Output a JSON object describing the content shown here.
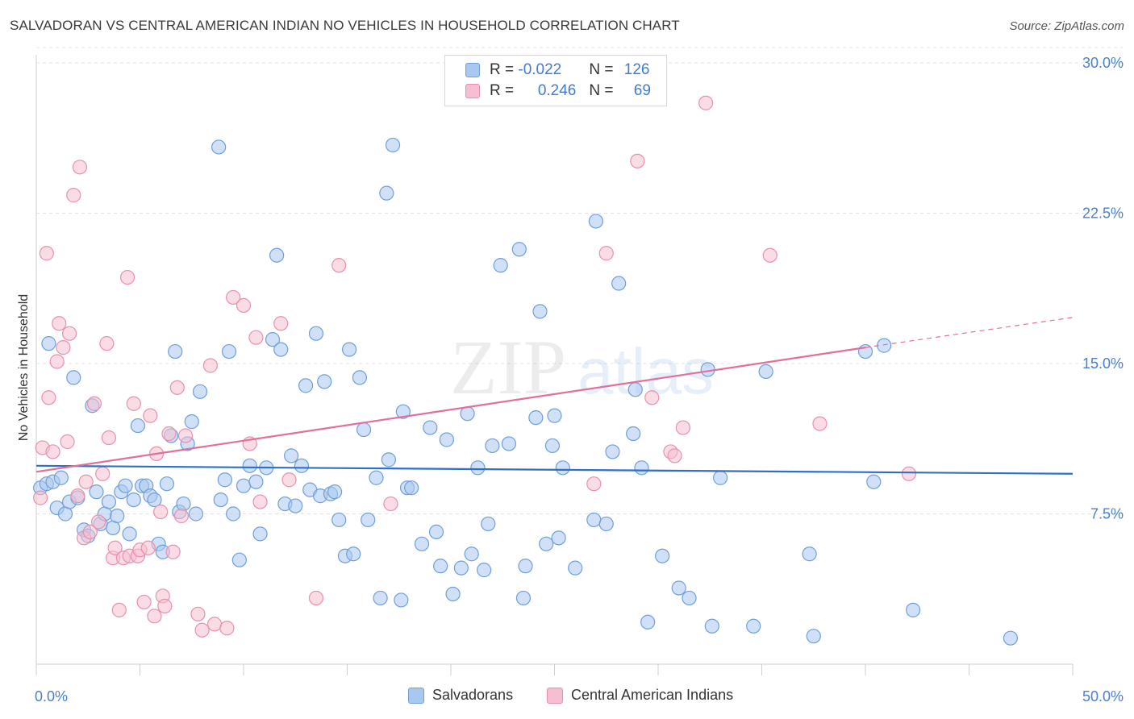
{
  "header": {
    "title": "SALVADORAN VS CENTRAL AMERICAN INDIAN NO VEHICLES IN HOUSEHOLD CORRELATION CHART",
    "source": "Source: ZipAtlas.com"
  },
  "legend": {
    "rows": [
      {
        "r_label": "R = ",
        "r_value": "-0.022",
        "n_label": "N = ",
        "n_value": "126"
      },
      {
        "r_label": "R = ",
        "r_value": "0.246",
        "n_label": "N = ",
        "n_value": "69"
      }
    ]
  },
  "bottom_legend": [
    "Salvadorans",
    "Central American Indians"
  ],
  "watermark": {
    "zip": "ZIP",
    "atlas": "atlas"
  },
  "colors": {
    "blue_fill": "#a9c8f0",
    "blue_stroke": "#6f9fdb",
    "blue_line": "#2f6fc8",
    "pink_fill": "#f5bfd0",
    "pink_stroke": "#e890ad",
    "pink_line": "#e0709a",
    "tick_text": "#4a7fcf",
    "grid": "#e3e3e3"
  },
  "chart_data": {
    "type": "scatter",
    "title": "SALVADORAN VS CENTRAL AMERICAN INDIAN NO VEHICLES IN HOUSEHOLD CORRELATION CHART",
    "xlabel": "",
    "ylabel": "No Vehicles in Household",
    "xlim": [
      0,
      50
    ],
    "ylim": [
      0,
      30
    ],
    "x_tick_labels": [
      "0.0%",
      "50.0%"
    ],
    "y_ticks": [
      7.5,
      15.0,
      22.5,
      30.0
    ],
    "y_tick_labels": [
      "7.5%",
      "15.0%",
      "22.5%",
      "30.0%"
    ],
    "grid": true,
    "legend_position": "top-center",
    "series": [
      {
        "name": "Salvadorans",
        "color": "#a9c8f0",
        "trend": {
          "x": [
            0,
            50
          ],
          "y": [
            9.9,
            9.5
          ]
        },
        "points": [
          [
            0.2,
            8.8
          ],
          [
            0.5,
            9.0
          ],
          [
            0.6,
            16.0
          ],
          [
            0.8,
            9.1
          ],
          [
            1.0,
            7.8
          ],
          [
            1.2,
            9.3
          ],
          [
            1.4,
            7.5
          ],
          [
            1.6,
            8.1
          ],
          [
            1.8,
            14.3
          ],
          [
            2.0,
            8.3
          ],
          [
            2.3,
            6.7
          ],
          [
            2.5,
            6.4
          ],
          [
            2.7,
            12.9
          ],
          [
            2.9,
            8.6
          ],
          [
            3.1,
            7.0
          ],
          [
            3.3,
            7.5
          ],
          [
            3.5,
            8.1
          ],
          [
            3.7,
            6.8
          ],
          [
            3.9,
            7.4
          ],
          [
            4.1,
            8.6
          ],
          [
            4.3,
            8.9
          ],
          [
            4.5,
            6.5
          ],
          [
            4.7,
            8.2
          ],
          [
            4.9,
            11.9
          ],
          [
            5.1,
            8.9
          ],
          [
            5.3,
            8.9
          ],
          [
            5.5,
            8.4
          ],
          [
            5.7,
            8.2
          ],
          [
            5.9,
            6.0
          ],
          [
            6.1,
            5.6
          ],
          [
            6.3,
            9.0
          ],
          [
            6.5,
            11.4
          ],
          [
            6.7,
            15.6
          ],
          [
            6.9,
            7.6
          ],
          [
            7.1,
            8.0
          ],
          [
            7.3,
            11.0
          ],
          [
            7.5,
            12.1
          ],
          [
            7.7,
            7.5
          ],
          [
            7.9,
            13.6
          ],
          [
            8.8,
            25.8
          ],
          [
            8.9,
            8.2
          ],
          [
            9.1,
            9.2
          ],
          [
            9.3,
            15.6
          ],
          [
            9.5,
            7.5
          ],
          [
            9.8,
            5.2
          ],
          [
            10.0,
            8.9
          ],
          [
            10.3,
            9.9
          ],
          [
            10.6,
            9.1
          ],
          [
            10.8,
            6.5
          ],
          [
            11.1,
            9.8
          ],
          [
            11.4,
            16.2
          ],
          [
            11.6,
            20.4
          ],
          [
            11.8,
            15.7
          ],
          [
            12.0,
            8.0
          ],
          [
            12.3,
            10.4
          ],
          [
            12.5,
            7.9
          ],
          [
            12.8,
            9.9
          ],
          [
            13.0,
            13.9
          ],
          [
            13.2,
            8.7
          ],
          [
            13.5,
            16.5
          ],
          [
            13.7,
            8.4
          ],
          [
            13.9,
            14.1
          ],
          [
            14.2,
            8.5
          ],
          [
            14.4,
            8.6
          ],
          [
            14.6,
            7.2
          ],
          [
            14.9,
            5.4
          ],
          [
            15.1,
            15.7
          ],
          [
            15.3,
            5.5
          ],
          [
            15.6,
            14.3
          ],
          [
            15.8,
            11.7
          ],
          [
            16.0,
            7.2
          ],
          [
            16.4,
            9.3
          ],
          [
            16.6,
            3.3
          ],
          [
            16.9,
            23.5
          ],
          [
            17.0,
            10.2
          ],
          [
            17.2,
            25.9
          ],
          [
            17.6,
            3.2
          ],
          [
            17.7,
            12.6
          ],
          [
            17.9,
            8.8
          ],
          [
            18.1,
            8.8
          ],
          [
            18.6,
            6.0
          ],
          [
            19.0,
            11.8
          ],
          [
            19.3,
            6.6
          ],
          [
            19.5,
            4.9
          ],
          [
            19.8,
            11.2
          ],
          [
            20.1,
            3.5
          ],
          [
            20.5,
            4.8
          ],
          [
            20.8,
            12.5
          ],
          [
            21.0,
            5.5
          ],
          [
            21.3,
            9.8
          ],
          [
            21.6,
            4.7
          ],
          [
            21.8,
            7.0
          ],
          [
            22.0,
            10.9
          ],
          [
            22.4,
            19.9
          ],
          [
            22.8,
            11.0
          ],
          [
            23.3,
            20.7
          ],
          [
            23.5,
            3.3
          ],
          [
            23.6,
            4.9
          ],
          [
            24.1,
            12.3
          ],
          [
            24.3,
            17.6
          ],
          [
            24.6,
            6.0
          ],
          [
            24.9,
            10.9
          ],
          [
            25.0,
            12.4
          ],
          [
            25.2,
            6.3
          ],
          [
            25.4,
            9.8
          ],
          [
            26.0,
            4.8
          ],
          [
            26.9,
            7.2
          ],
          [
            27.0,
            22.1
          ],
          [
            27.5,
            7.0
          ],
          [
            27.8,
            10.6
          ],
          [
            28.1,
            19.0
          ],
          [
            28.8,
            11.5
          ],
          [
            28.9,
            13.7
          ],
          [
            29.2,
            9.8
          ],
          [
            29.5,
            2.1
          ],
          [
            30.2,
            5.4
          ],
          [
            31.0,
            3.8
          ],
          [
            31.5,
            3.3
          ],
          [
            32.4,
            14.7
          ],
          [
            32.6,
            1.9
          ],
          [
            33.0,
            9.3
          ],
          [
            34.6,
            1.9
          ],
          [
            35.2,
            14.6
          ],
          [
            37.3,
            5.5
          ],
          [
            37.5,
            1.4
          ],
          [
            40.0,
            15.6
          ],
          [
            40.4,
            9.1
          ],
          [
            40.9,
            15.9
          ],
          [
            42.3,
            2.7
          ],
          [
            47.0,
            1.3
          ]
        ]
      },
      {
        "name": "Central American Indians",
        "color": "#f5bfd0",
        "trend": {
          "x": [
            0,
            40
          ],
          "y": [
            9.6,
            15.8
          ]
        },
        "trend_dashed": {
          "x": [
            40,
            50
          ],
          "y": [
            15.8,
            17.3
          ]
        },
        "points": [
          [
            0.2,
            8.3
          ],
          [
            0.3,
            10.8
          ],
          [
            0.5,
            20.5
          ],
          [
            0.6,
            13.3
          ],
          [
            0.8,
            10.6
          ],
          [
            1.0,
            15.1
          ],
          [
            1.1,
            17.0
          ],
          [
            1.3,
            15.8
          ],
          [
            1.5,
            11.1
          ],
          [
            1.6,
            16.5
          ],
          [
            1.8,
            23.4
          ],
          [
            2.0,
            8.4
          ],
          [
            2.1,
            24.8
          ],
          [
            2.3,
            6.3
          ],
          [
            2.4,
            9.1
          ],
          [
            2.6,
            6.6
          ],
          [
            2.8,
            13.0
          ],
          [
            3.0,
            7.1
          ],
          [
            3.2,
            9.5
          ],
          [
            3.4,
            16.0
          ],
          [
            3.5,
            11.3
          ],
          [
            3.7,
            5.3
          ],
          [
            3.8,
            5.8
          ],
          [
            4.0,
            2.7
          ],
          [
            4.2,
            5.3
          ],
          [
            4.4,
            19.3
          ],
          [
            4.5,
            5.4
          ],
          [
            4.7,
            13.0
          ],
          [
            4.9,
            5.4
          ],
          [
            5.0,
            5.7
          ],
          [
            5.2,
            3.1
          ],
          [
            5.4,
            5.8
          ],
          [
            5.5,
            12.4
          ],
          [
            5.7,
            2.4
          ],
          [
            5.8,
            10.5
          ],
          [
            6.0,
            7.6
          ],
          [
            6.1,
            3.4
          ],
          [
            6.2,
            2.9
          ],
          [
            6.4,
            11.5
          ],
          [
            6.6,
            5.6
          ],
          [
            6.8,
            13.8
          ],
          [
            7.0,
            7.4
          ],
          [
            7.2,
            11.4
          ],
          [
            7.8,
            2.5
          ],
          [
            8.0,
            1.7
          ],
          [
            8.4,
            14.9
          ],
          [
            8.6,
            2.0
          ],
          [
            9.2,
            1.8
          ],
          [
            9.5,
            18.3
          ],
          [
            10.0,
            17.9
          ],
          [
            10.3,
            11.0
          ],
          [
            10.6,
            16.3
          ],
          [
            10.8,
            8.1
          ],
          [
            11.8,
            17.0
          ],
          [
            12.2,
            9.2
          ],
          [
            13.5,
            3.3
          ],
          [
            14.6,
            19.9
          ],
          [
            17.1,
            8.0
          ],
          [
            26.9,
            9.0
          ],
          [
            27.5,
            20.5
          ],
          [
            29.0,
            25.1
          ],
          [
            29.7,
            13.3
          ],
          [
            30.6,
            10.6
          ],
          [
            30.8,
            10.4
          ],
          [
            31.2,
            11.8
          ],
          [
            32.3,
            28.0
          ],
          [
            35.4,
            20.4
          ],
          [
            37.8,
            12.0
          ],
          [
            42.1,
            9.5
          ]
        ]
      }
    ]
  }
}
